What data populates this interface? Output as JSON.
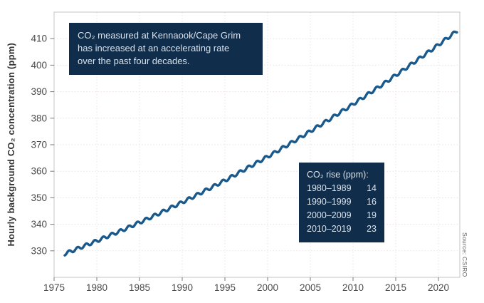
{
  "chart_data": {
    "type": "line",
    "ylabel": "Hourly background CO₂ concentration (ppm)",
    "source": "Source: CSIRO",
    "xlim": [
      1975,
      2022.5
    ],
    "ylim": [
      320,
      420
    ],
    "xticks": [
      1975,
      1980,
      1985,
      1990,
      1995,
      2000,
      2005,
      2010,
      2015,
      2020
    ],
    "yticks": [
      330,
      340,
      350,
      360,
      370,
      380,
      390,
      400,
      410
    ],
    "grid": "dotted",
    "line_color": "#19598c",
    "colors": {
      "navy_box": "#102d4b",
      "box_text": "#d9e2eb",
      "frame": "#c4c4c4",
      "grid": "#e9e1e1",
      "tick_text": "#4a4a4a"
    },
    "annotation_box": {
      "lines": [
        "CO₂ measured at Kennaook/Cape Grim",
        "has increased at an accelerating rate",
        "over the past four decades."
      ]
    },
    "rise_table": {
      "title": "CO₂ rise (ppm):",
      "rows": [
        {
          "period": "1980–1989",
          "ppm": "14"
        },
        {
          "period": "1990–1999",
          "ppm": "16"
        },
        {
          "period": "2000–2009",
          "ppm": "19"
        },
        {
          "period": "2010–2019",
          "ppm": "23"
        }
      ]
    },
    "series": [
      {
        "start": 1976.25,
        "end": 2022.2,
        "seasonal_cycle_ppm": 0.6,
        "years": [
          1976,
          1977,
          1978,
          1979,
          1980,
          1981,
          1982,
          1983,
          1984,
          1985,
          1986,
          1987,
          1988,
          1989,
          1990,
          1991,
          1992,
          1993,
          1994,
          1995,
          1996,
          1997,
          1998,
          1999,
          2000,
          2001,
          2002,
          2003,
          2004,
          2005,
          2006,
          2007,
          2008,
          2009,
          2010,
          2011,
          2012,
          2013,
          2014,
          2015,
          2016,
          2017,
          2018,
          2019,
          2020,
          2021,
          2022
        ],
        "annual_mean_ppm": [
          329.2,
          330.5,
          331.8,
          333.1,
          334.4,
          335.8,
          337.1,
          338.5,
          340.0,
          341.4,
          342.9,
          344.4,
          346.0,
          347.5,
          349.1,
          350.7,
          352.4,
          354.0,
          355.7,
          357.4,
          359.2,
          361.0,
          362.8,
          364.6,
          366.4,
          368.3,
          370.2,
          372.1,
          374.1,
          376.1,
          378.1,
          380.1,
          382.2,
          384.2,
          386.4,
          388.5,
          390.7,
          392.8,
          395.1,
          397.3,
          399.6,
          401.9,
          404.2,
          406.5,
          408.9,
          411.3,
          413.7
        ]
      }
    ]
  }
}
